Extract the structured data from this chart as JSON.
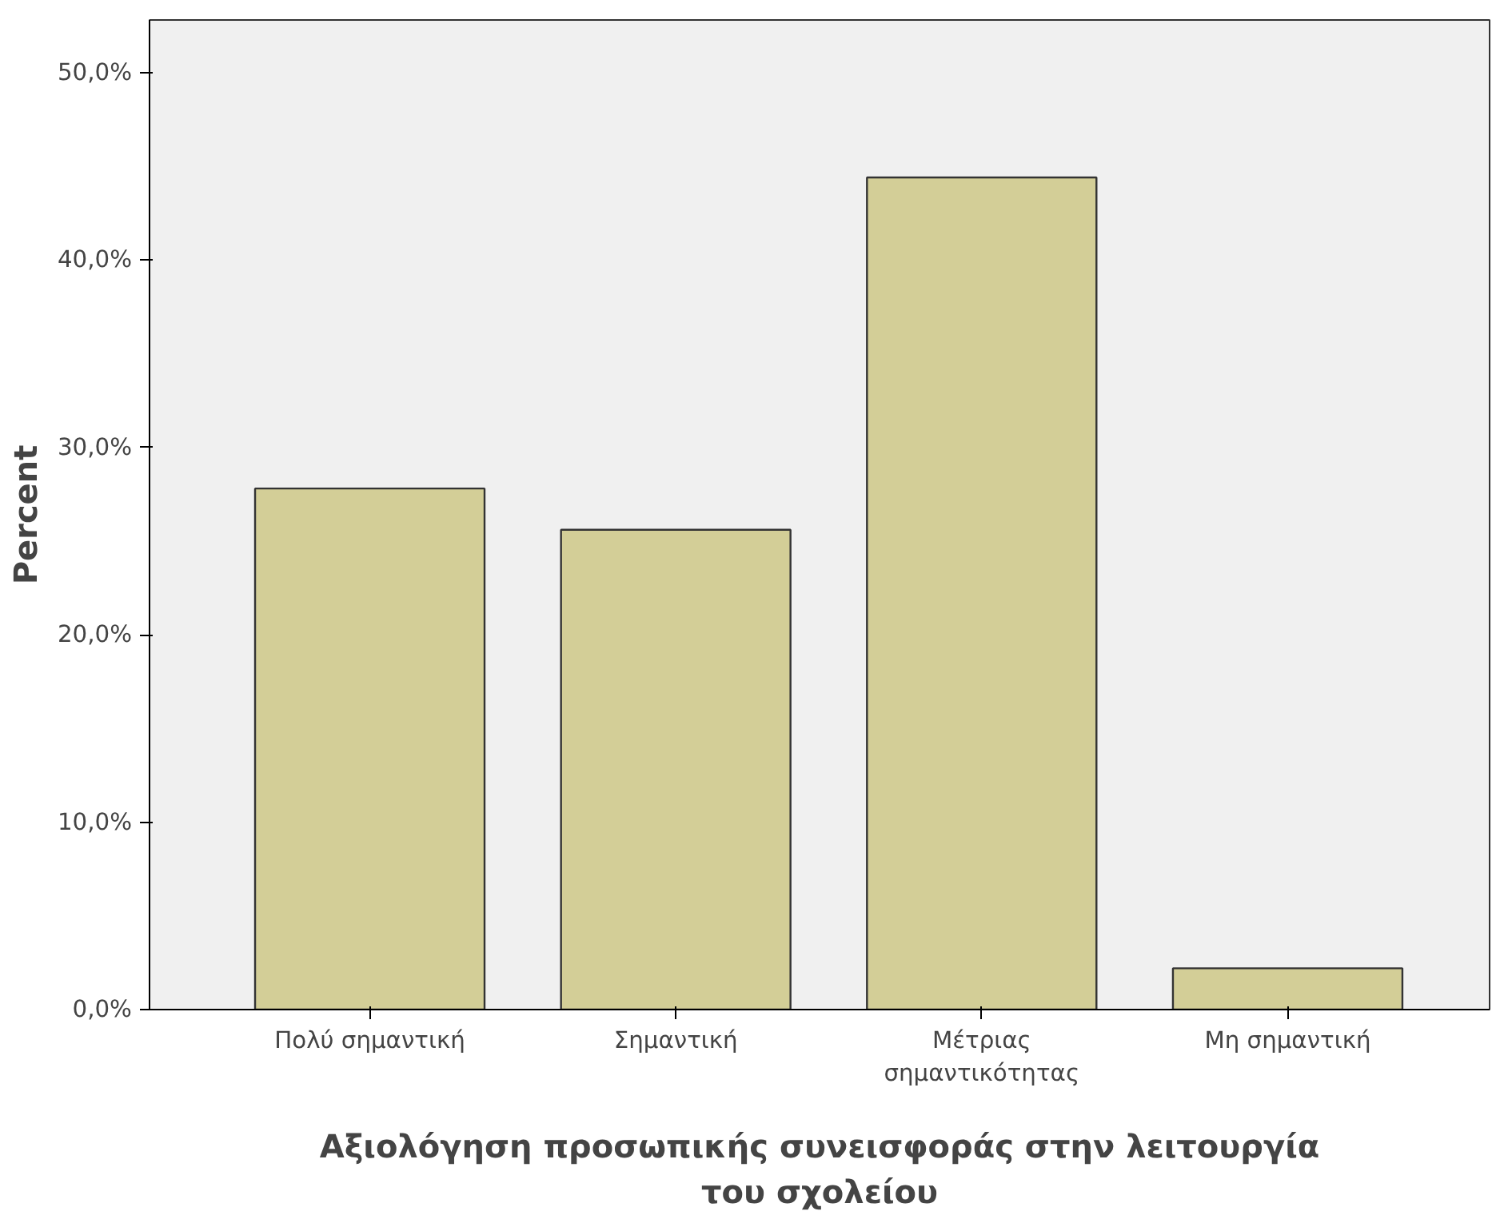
{
  "chart_data": {
    "type": "bar",
    "xlabel": "Αξιολόγηση προσωπικής συνεισφοράς στην λειτουργία του σχολείου",
    "ylabel": "Percent",
    "categories": [
      "Πολύ σημαντική",
      "Σημαντική",
      "Μέτριας σημαντικότητας",
      "Μη σημαντική"
    ],
    "values": [
      27.8,
      25.6,
      44.4,
      2.2
    ],
    "color": "#d3ce97",
    "ylim": [
      0,
      52.8
    ],
    "yticks": [
      {
        "value": 0,
        "label": "0,0%"
      },
      {
        "value": 10,
        "label": "10,0%"
      },
      {
        "value": 20,
        "label": "20,0%"
      },
      {
        "value": 30,
        "label": "30,0%"
      },
      {
        "value": 40,
        "label": "40,0%"
      },
      {
        "value": 50,
        "label": "50,0%"
      }
    ],
    "grid": false,
    "legend": false
  }
}
